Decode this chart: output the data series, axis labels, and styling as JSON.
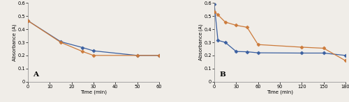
{
  "plot_A": {
    "label": "A",
    "orange_x": [
      0,
      15,
      25,
      30,
      50,
      60
    ],
    "orange_y": [
      0.465,
      0.3,
      0.23,
      0.2,
      0.2,
      0.2
    ],
    "blue_x": [
      0,
      15,
      25,
      30,
      50,
      60
    ],
    "blue_y": [
      0.465,
      0.305,
      0.26,
      0.235,
      0.2,
      0.2
    ],
    "xlabel": "Time (min)",
    "ylabel": "Absorbance (A)",
    "xlim": [
      0,
      60
    ],
    "ylim": [
      0,
      0.6
    ],
    "xticks": [
      0,
      10,
      20,
      30,
      40,
      50,
      60
    ],
    "yticks": [
      0,
      0.1,
      0.2,
      0.3,
      0.4,
      0.5,
      0.6
    ]
  },
  "plot_B": {
    "label": "B",
    "orange_x": [
      0,
      5,
      15,
      30,
      45,
      60,
      120,
      150,
      180
    ],
    "orange_y": [
      0.535,
      0.51,
      0.455,
      0.43,
      0.415,
      0.283,
      0.263,
      0.255,
      0.16
    ],
    "blue_x": [
      0,
      5,
      15,
      30,
      45,
      60,
      120,
      150,
      180
    ],
    "blue_y": [
      0.59,
      0.315,
      0.3,
      0.23,
      0.228,
      0.22,
      0.218,
      0.218,
      0.2
    ],
    "xlabel": "Time (min)",
    "ylabel": "Absorbance (A)",
    "xlim": [
      0,
      180
    ],
    "ylim": [
      0,
      0.6
    ],
    "xticks": [
      0,
      30,
      60,
      90,
      120,
      150,
      180
    ],
    "yticks": [
      0,
      0.1,
      0.2,
      0.3,
      0.4,
      0.5,
      0.6
    ]
  },
  "orange_color": "#CC7A3A",
  "blue_color": "#3A5FA0",
  "marker": "D",
  "markersize": 2.5,
  "linewidth": 0.9,
  "fontsize_label": 5.0,
  "fontsize_tick": 4.8,
  "fontsize_annotation": 7.5,
  "bg_color": "#F0EDE8"
}
